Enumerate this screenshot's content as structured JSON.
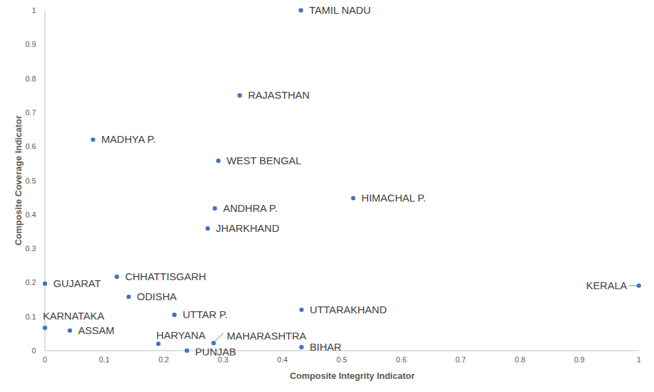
{
  "chart_data": {
    "type": "scatter",
    "x_label": "Composite Integrity Indicator",
    "y_label": "Composite Coverage Indicator",
    "labels": [
      "TAMIL NADU",
      "RAJASTHAN",
      "MADHYA P.",
      "WEST BENGAL",
      "ANDHRA P.",
      "HIMACHAL P.",
      "JHARKHAND",
      "GUJARAT",
      "CHHATTISGARH",
      "ODISHA",
      "KERALA",
      "UTTARAKHAND",
      "UTTAR P.",
      "KARNATAKA",
      "ASSAM",
      "HARYANA",
      "MAHARASHTRA",
      "PUNJAB",
      "BIHAR"
    ],
    "x": [
      0.431,
      0.328,
      0.081,
      0.292,
      0.286,
      0.519,
      0.274,
      0,
      0.121,
      0.141,
      1,
      0.432,
      0.218,
      0,
      0.042,
      0.191,
      0.284,
      0.239,
      0.432
    ],
    "values": [
      1,
      0.75,
      0.62,
      0.558,
      0.418,
      0.448,
      0.359,
      0.197,
      0.217,
      0.158,
      0.191,
      0.12,
      0.105,
      0.067,
      0.059,
      0.02,
      0.022,
      0,
      0.01
    ],
    "color": "#4472c4",
    "marker": "circle",
    "xlim": [
      0,
      1
    ],
    "ylim": [
      0,
      1
    ],
    "xticks": [
      0,
      0.1,
      0.2,
      0.3,
      0.4,
      0.5,
      0.6,
      0.7,
      0.8,
      0.9,
      1
    ],
    "yticks": [
      0,
      0.1,
      0.2,
      0.3,
      0.4,
      0.5,
      0.6,
      0.7,
      0.8,
      0.9,
      1
    ],
    "grid": false
  }
}
